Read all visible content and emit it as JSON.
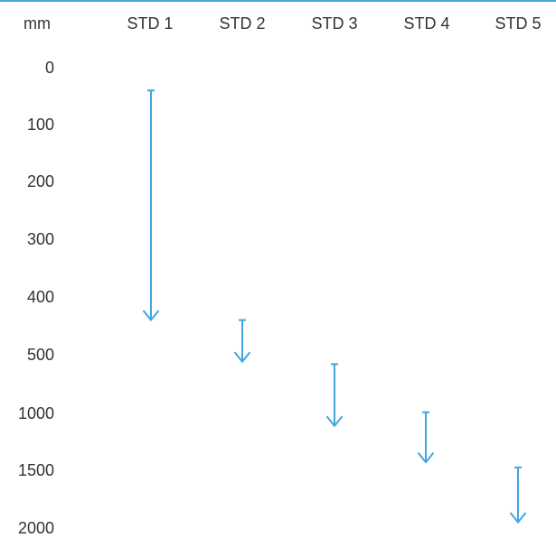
{
  "chart_data": {
    "type": "range-arrow",
    "unit_label": "mm",
    "columns": [
      "STD 1",
      "STD 2",
      "STD 3",
      "STD 4",
      "STD 5"
    ],
    "rows": [
      "0",
      "100",
      "200",
      "300",
      "400",
      "500",
      "1000",
      "1500",
      "2000"
    ],
    "ranges": [
      {
        "column": "STD 1",
        "from": 40,
        "to": 440
      },
      {
        "column": "STD 2",
        "from": 440,
        "to": 560
      },
      {
        "column": "STD 3",
        "from": 580,
        "to": 1110
      },
      {
        "column": "STD 4",
        "from": 990,
        "to": 1430
      },
      {
        "column": "STD 5",
        "from": 1475,
        "to": 1950
      }
    ],
    "colors": {
      "arrow": "#41a6dd",
      "text": "#333333",
      "top_rule": "#41a6dd"
    }
  }
}
